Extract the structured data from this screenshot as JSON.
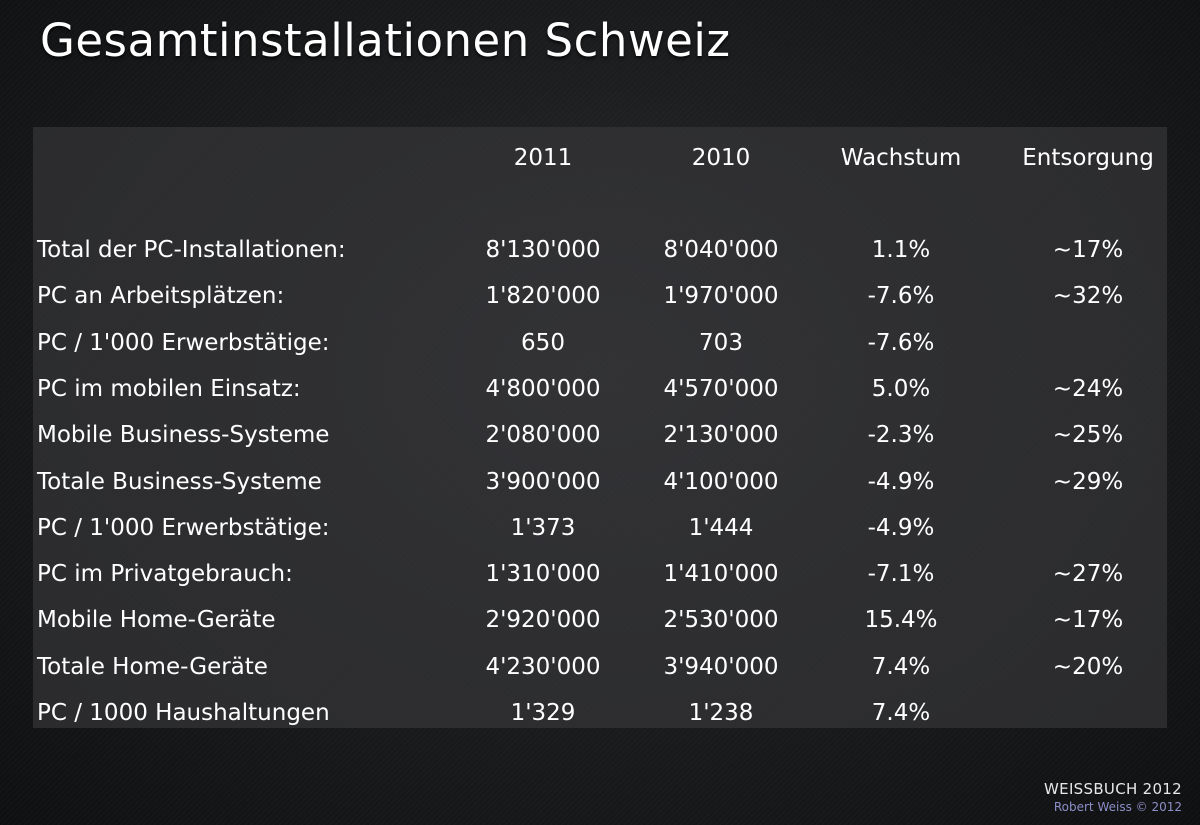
{
  "title": "Gesamtinstallationen Schweiz",
  "table": {
    "headers": [
      "",
      "2011",
      "2010",
      "Wachstum",
      "Entsorgung"
    ],
    "rows": [
      {
        "label": "Total der PC-Installationen:",
        "y2011": "8'130'000",
        "y2010": "8'040'000",
        "growth": "1.1%",
        "disposal": "~17%"
      },
      {
        "label": "PC an Arbeitsplätzen:",
        "y2011": "1'820'000",
        "y2010": "1'970'000",
        "growth": "-7.6%",
        "disposal": "~32%"
      },
      {
        "label": "PC / 1'000 Erwerbstätige:",
        "y2011": "650",
        "y2010": "703",
        "growth": "-7.6%",
        "disposal": ""
      },
      {
        "label": "PC im mobilen Einsatz:",
        "y2011": "4'800'000",
        "y2010": "4'570'000",
        "growth": "5.0%",
        "disposal": "~24%"
      },
      {
        "label": "Mobile Business-Systeme",
        "y2011": "2'080'000",
        "y2010": "2'130'000",
        "growth": "-2.3%",
        "disposal": "~25%"
      },
      {
        "label": "Totale Business-Systeme",
        "y2011": "3'900'000",
        "y2010": "4'100'000",
        "growth": "-4.9%",
        "disposal": "~29%"
      },
      {
        "label": "PC / 1'000 Erwerbstätige:",
        "y2011": "1'373",
        "y2010": "1'444",
        "growth": "-4.9%",
        "disposal": ""
      },
      {
        "label": "PC im Privatgebrauch:",
        "y2011": "1'310'000",
        "y2010": "1'410'000",
        "growth": "-7.1%",
        "disposal": "~27%"
      },
      {
        "label": "Mobile Home-Geräte",
        "y2011": "2'920'000",
        "y2010": "2'530'000",
        "growth": "15.4%",
        "disposal": "~17%"
      },
      {
        "label": "Totale Home-Geräte",
        "y2011": "4'230'000",
        "y2010": "3'940'000",
        "growth": "7.4%",
        "disposal": "~20%"
      },
      {
        "label": "PC / 1000 Haushaltungen",
        "y2011": "1'329",
        "y2010": "1'238",
        "growth": "7.4%",
        "disposal": ""
      }
    ]
  },
  "footer": {
    "brand": "WEISSBUCH 2012",
    "copyright": "Robert Weiss © 2012"
  }
}
